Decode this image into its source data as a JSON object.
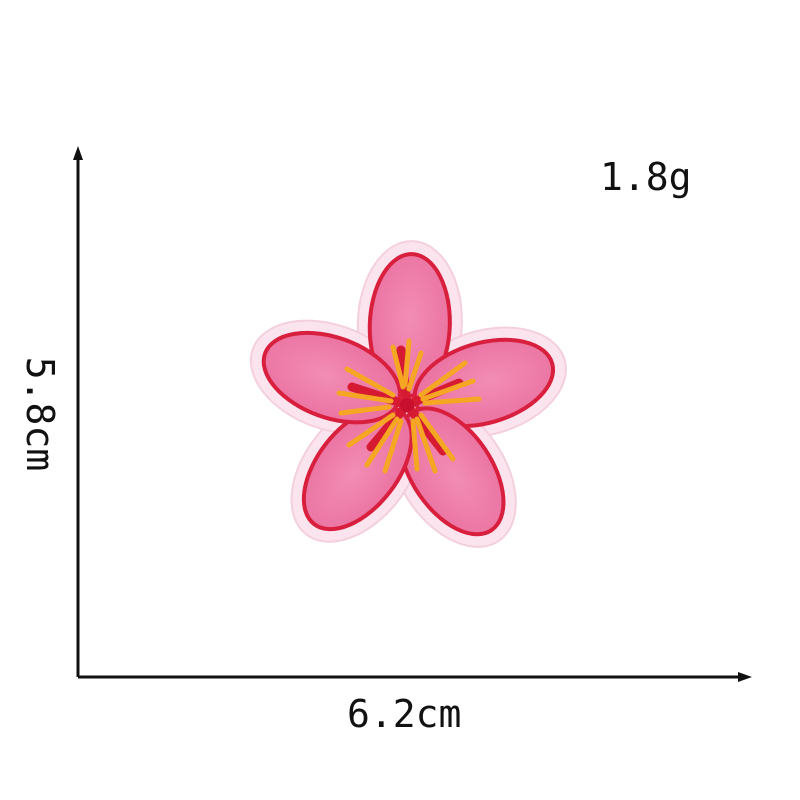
{
  "product": {
    "name": "pink flower embroidered patch",
    "weight": "1.8g",
    "width": "6.2cm",
    "height": "5.8cm",
    "colors": {
      "petal": "#ef7fab",
      "petal_edge": "#d81f3d",
      "border": "#fbe5ef",
      "center_red": "#d61a32",
      "stamen": "#f5a623"
    }
  }
}
